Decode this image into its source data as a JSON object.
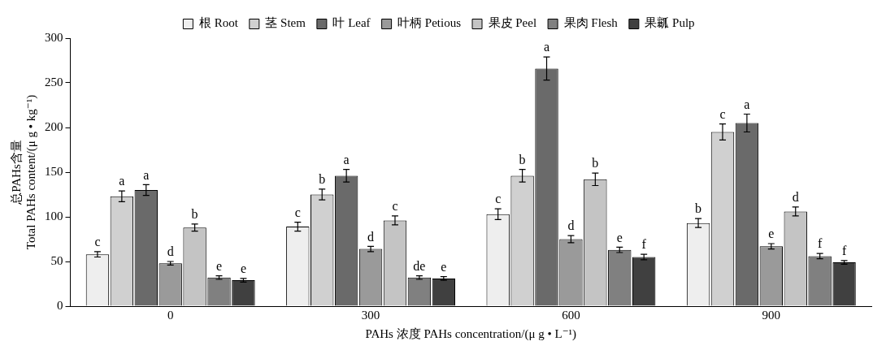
{
  "chart_data": {
    "type": "bar",
    "xlabel": "PAHs 浓度 PAHs concentration/(μ g • L⁻¹)",
    "ylabel": "总PAHs含量\nTotal PAHs content/(μ g • kg⁻¹)",
    "categories": [
      "0",
      "300",
      "600",
      "900"
    ],
    "ylim": [
      0,
      300
    ],
    "yticks": [
      0,
      50,
      100,
      150,
      200,
      250,
      300
    ],
    "grid": false,
    "legend": "top",
    "series": [
      {
        "name": "根 Root",
        "color": "#eeeeee",
        "values": [
          58,
          89,
          103,
          93
        ],
        "errors": [
          3,
          5,
          6,
          5
        ],
        "value_labels": [
          "c",
          "c",
          "c",
          "b"
        ]
      },
      {
        "name": "茎 Stem",
        "color": "#d0d0d0",
        "values": [
          123,
          125,
          146,
          195
        ],
        "errors": [
          6,
          6,
          7,
          9
        ],
        "value_labels": [
          "a",
          "b",
          "b",
          "c"
        ]
      },
      {
        "name": "叶 Leaf",
        "color": "#6a6a6a",
        "values": [
          130,
          146,
          266,
          205
        ],
        "errors": [
          6,
          7,
          13,
          10
        ],
        "value_labels": [
          "a",
          "a",
          "a",
          "a"
        ]
      },
      {
        "name": "叶柄 Petious",
        "color": "#9a9a9a",
        "values": [
          48,
          64,
          75,
          67
        ],
        "errors": [
          2,
          3,
          4,
          3
        ],
        "value_labels": [
          "d",
          "d",
          "d",
          "e"
        ]
      },
      {
        "name": "果皮 Peel",
        "color": "#c4c4c4",
        "values": [
          88,
          96,
          142,
          106
        ],
        "errors": [
          4,
          5,
          7,
          5
        ],
        "value_labels": [
          "b",
          "c",
          "b",
          "d"
        ]
      },
      {
        "name": "果肉 Flesh",
        "color": "#808080",
        "values": [
          32,
          32,
          63,
          56
        ],
        "errors": [
          2,
          2,
          3,
          3
        ],
        "value_labels": [
          "e",
          "de",
          "e",
          "f"
        ]
      },
      {
        "name": "果瓤 Pulp",
        "color": "#404040",
        "values": [
          29,
          31,
          55,
          49
        ],
        "errors": [
          2,
          2,
          3,
          2
        ],
        "value_labels": [
          "e",
          "e",
          "f",
          "f"
        ]
      }
    ]
  }
}
